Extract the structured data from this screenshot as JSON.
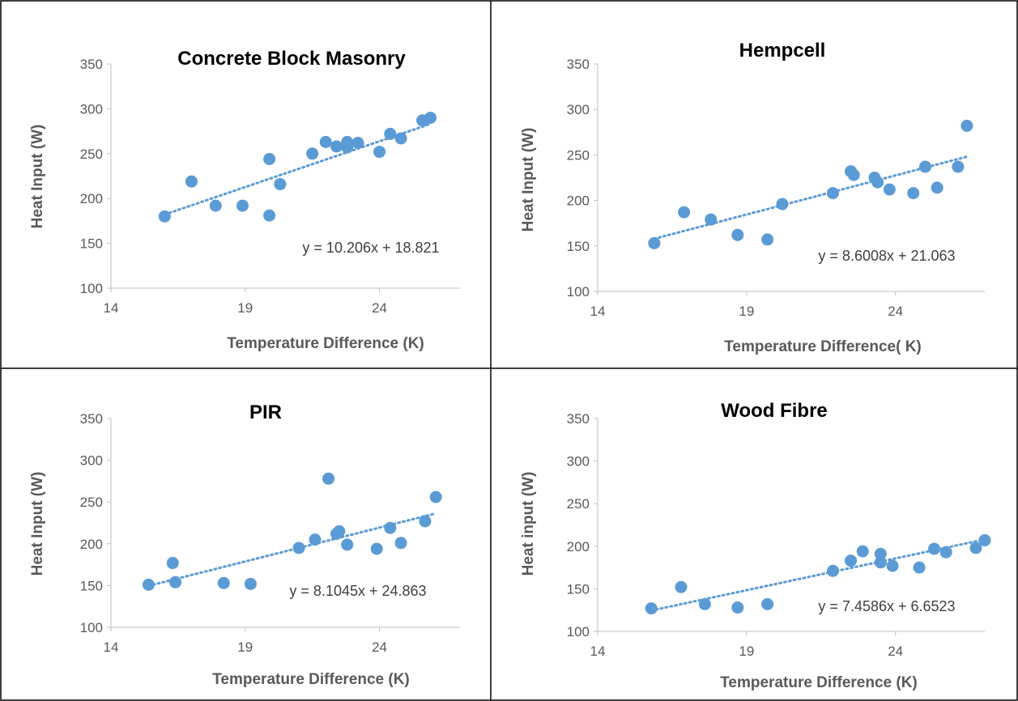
{
  "chart_data": [
    {
      "type": "scatter",
      "title": "Concrete Block Masonry",
      "xlabel": "Temperature Difference (K)",
      "ylabel": "Heat Input (W)",
      "xlim": [
        14,
        27
      ],
      "ylim": [
        100,
        350
      ],
      "xticks": [
        14,
        19,
        24
      ],
      "yticks": [
        100,
        150,
        200,
        250,
        300,
        350
      ],
      "marker_color": "#5B9BD5",
      "trendline": {
        "slope": 10.206,
        "intercept": 18.821,
        "style": "dotted"
      },
      "equation_label": "y = 10.206x + 18.821",
      "points": [
        [
          16,
          180
        ],
        [
          17,
          219
        ],
        [
          17.9,
          192
        ],
        [
          18.9,
          192
        ],
        [
          19.9,
          244
        ],
        [
          19.9,
          181
        ],
        [
          20.3,
          216
        ],
        [
          21.5,
          250
        ],
        [
          22,
          263
        ],
        [
          22.4,
          258
        ],
        [
          22.8,
          263
        ],
        [
          22.8,
          257
        ],
        [
          23.2,
          262
        ],
        [
          24,
          252
        ],
        [
          24.4,
          272
        ],
        [
          24.8,
          267
        ],
        [
          25.6,
          287
        ],
        [
          25.9,
          290
        ]
      ]
    },
    {
      "type": "scatter",
      "title": "Hempcell",
      "xlabel": "Temperature Difference( K)",
      "ylabel": "Heat Input (W)",
      "xlim": [
        14,
        27
      ],
      "ylim": [
        100,
        350
      ],
      "xticks": [
        14,
        19,
        24
      ],
      "yticks": [
        100,
        150,
        200,
        250,
        300,
        350
      ],
      "marker_color": "#5B9BD5",
      "trendline": {
        "slope": 8.6008,
        "intercept": 21.063,
        "style": "dotted"
      },
      "equation_label": "y = 8.6008x + 21.063",
      "points": [
        [
          15.9,
          153
        ],
        [
          16.9,
          187
        ],
        [
          17.8,
          179
        ],
        [
          18.7,
          162
        ],
        [
          19.7,
          157
        ],
        [
          20.2,
          196
        ],
        [
          21.9,
          208
        ],
        [
          22.5,
          232
        ],
        [
          22.6,
          228
        ],
        [
          23.3,
          225
        ],
        [
          23.4,
          220
        ],
        [
          23.8,
          212
        ],
        [
          24.6,
          208
        ],
        [
          25,
          237
        ],
        [
          25.4,
          214
        ],
        [
          26.1,
          237
        ],
        [
          26.4,
          282
        ]
      ]
    },
    {
      "type": "scatter",
      "title": "PIR",
      "xlabel": "Temperature Difference (K)",
      "ylabel": "Heat Input (W)",
      "xlim": [
        14,
        27
      ],
      "ylim": [
        100,
        350
      ],
      "xticks": [
        14,
        19,
        24
      ],
      "yticks": [
        100,
        150,
        200,
        250,
        300,
        350
      ],
      "marker_color": "#5B9BD5",
      "trendline": {
        "slope": 8.1045,
        "intercept": 24.863,
        "style": "dotted"
      },
      "equation_label": "y = 8.1045x + 24.863",
      "points": [
        [
          15.4,
          151
        ],
        [
          16.3,
          177
        ],
        [
          16.4,
          154
        ],
        [
          18.2,
          153
        ],
        [
          19.2,
          152
        ],
        [
          21,
          195
        ],
        [
          21.6,
          205
        ],
        [
          22.1,
          278
        ],
        [
          22.4,
          212
        ],
        [
          22.5,
          215
        ],
        [
          22.8,
          199
        ],
        [
          23.9,
          194
        ],
        [
          24.4,
          219
        ],
        [
          24.8,
          201
        ],
        [
          25.7,
          227
        ],
        [
          26.1,
          256
        ]
      ]
    },
    {
      "type": "scatter",
      "title": "Wood Fibre",
      "xlabel": "Temperature Difference (K)",
      "ylabel": "Heat input (W)",
      "xlim": [
        14,
        27
      ],
      "ylim": [
        100,
        350
      ],
      "xticks": [
        14,
        19,
        24
      ],
      "yticks": [
        100,
        150,
        200,
        250,
        300,
        350
      ],
      "marker_color": "#5B9BD5",
      "trendline": {
        "slope": 7.4586,
        "intercept": 6.6523,
        "style": "dotted"
      },
      "equation_label": "y = 7.4586x + 6.6523",
      "points": [
        [
          15.8,
          127
        ],
        [
          16.8,
          152
        ],
        [
          17.6,
          132
        ],
        [
          18.7,
          128
        ],
        [
          19.7,
          132
        ],
        [
          21.9,
          171
        ],
        [
          22.5,
          183
        ],
        [
          22.9,
          194
        ],
        [
          23.5,
          191
        ],
        [
          23.5,
          181
        ],
        [
          23.9,
          177
        ],
        [
          24.8,
          175
        ],
        [
          25.3,
          197
        ],
        [
          25.7,
          193
        ],
        [
          26.7,
          198
        ],
        [
          27,
          207
        ]
      ]
    }
  ]
}
